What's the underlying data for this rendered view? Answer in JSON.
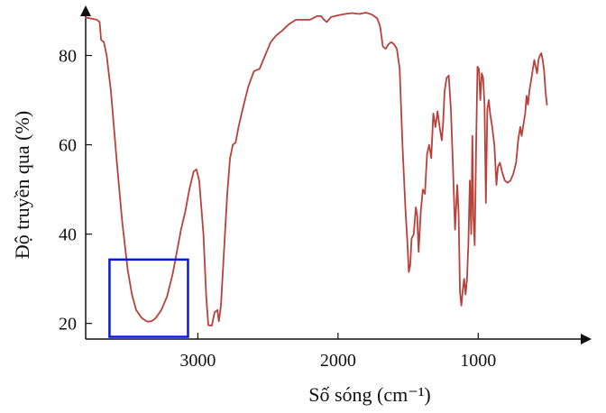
{
  "chart_data": {
    "type": "line",
    "title": "",
    "xlabel": "Số sóng (cm⁻¹)",
    "ylabel": "Độ truyền qua (%)",
    "x_reversed": true,
    "xlim": [
      3800,
      230
    ],
    "ylim": [
      16.5,
      90
    ],
    "x_ticks": [
      {
        "value": 3000,
        "label": "3000"
      },
      {
        "value": 2000,
        "label": "2000"
      },
      {
        "value": 1000,
        "label": "1000"
      }
    ],
    "y_ticks": [
      {
        "value": 20,
        "label": "20"
      },
      {
        "value": 40,
        "label": "40"
      },
      {
        "value": 60,
        "label": "60"
      },
      {
        "value": 80,
        "label": "80"
      }
    ],
    "grid": false,
    "line_color": "#b8413b",
    "highlight_color": "#0a18d8",
    "highlight_region": {
      "x_from": 3630,
      "x_to": 3070,
      "y_from": 17,
      "y_to": 34.3
    },
    "series": [
      {
        "points": [
          [
            3800,
            88.5
          ],
          [
            3720,
            88
          ],
          [
            3700,
            87.5
          ],
          [
            3690,
            83.5
          ],
          [
            3670,
            83
          ],
          [
            3650,
            80
          ],
          [
            3620,
            72
          ],
          [
            3580,
            57
          ],
          [
            3540,
            43
          ],
          [
            3500,
            32
          ],
          [
            3470,
            26.5
          ],
          [
            3440,
            23
          ],
          [
            3400,
            21.2
          ],
          [
            3360,
            20.4
          ],
          [
            3330,
            20.5
          ],
          [
            3300,
            21.2
          ],
          [
            3260,
            23
          ],
          [
            3220,
            26
          ],
          [
            3180,
            31
          ],
          [
            3150,
            36
          ],
          [
            3120,
            41
          ],
          [
            3090,
            45
          ],
          [
            3060,
            50
          ],
          [
            3030,
            54
          ],
          [
            3010,
            54.5
          ],
          [
            2990,
            52
          ],
          [
            2960,
            40
          ],
          [
            2940,
            26
          ],
          [
            2925,
            19.6
          ],
          [
            2900,
            19.5
          ],
          [
            2880,
            22.5
          ],
          [
            2860,
            23
          ],
          [
            2850,
            20.5
          ],
          [
            2835,
            24
          ],
          [
            2810,
            38
          ],
          [
            2790,
            49
          ],
          [
            2770,
            57
          ],
          [
            2750,
            60
          ],
          [
            2730,
            60.5
          ],
          [
            2710,
            64
          ],
          [
            2680,
            68
          ],
          [
            2640,
            73
          ],
          [
            2600,
            76.5
          ],
          [
            2560,
            77
          ],
          [
            2520,
            80
          ],
          [
            2480,
            83
          ],
          [
            2440,
            84.5
          ],
          [
            2400,
            85.5
          ],
          [
            2350,
            87
          ],
          [
            2300,
            88
          ],
          [
            2250,
            88
          ],
          [
            2200,
            88
          ],
          [
            2150,
            88.8
          ],
          [
            2120,
            88.8
          ],
          [
            2100,
            88
          ],
          [
            2080,
            87.5
          ],
          [
            2050,
            88.6
          ],
          [
            2000,
            89
          ],
          [
            1950,
            89.3
          ],
          [
            1900,
            89.5
          ],
          [
            1850,
            89.3
          ],
          [
            1800,
            89.6
          ],
          [
            1760,
            89.2
          ],
          [
            1720,
            88.3
          ],
          [
            1700,
            86.5
          ],
          [
            1680,
            82
          ],
          [
            1660,
            81.5
          ],
          [
            1640,
            82.5
          ],
          [
            1620,
            83
          ],
          [
            1600,
            82.5
          ],
          [
            1580,
            81.5
          ],
          [
            1560,
            77
          ],
          [
            1540,
            60
          ],
          [
            1520,
            46
          ],
          [
            1505,
            38
          ],
          [
            1495,
            31.5
          ],
          [
            1485,
            33
          ],
          [
            1475,
            39
          ],
          [
            1460,
            40
          ],
          [
            1445,
            46
          ],
          [
            1435,
            44
          ],
          [
            1425,
            36
          ],
          [
            1410,
            45
          ],
          [
            1395,
            50
          ],
          [
            1380,
            49
          ],
          [
            1365,
            58
          ],
          [
            1350,
            60
          ],
          [
            1335,
            57
          ],
          [
            1320,
            67
          ],
          [
            1305,
            64
          ],
          [
            1290,
            67.5
          ],
          [
            1275,
            64
          ],
          [
            1260,
            61
          ],
          [
            1250,
            65
          ],
          [
            1240,
            72
          ],
          [
            1225,
            75
          ],
          [
            1210,
            75.5
          ],
          [
            1195,
            68
          ],
          [
            1180,
            55
          ],
          [
            1165,
            41
          ],
          [
            1150,
            51
          ],
          [
            1140,
            45
          ],
          [
            1130,
            27
          ],
          [
            1120,
            24
          ],
          [
            1110,
            27.5
          ],
          [
            1100,
            30
          ],
          [
            1090,
            26.5
          ],
          [
            1080,
            30
          ],
          [
            1070,
            38
          ],
          [
            1060,
            52
          ],
          [
            1050,
            40
          ],
          [
            1042,
            62
          ],
          [
            1035,
            44
          ],
          [
            1025,
            37.5
          ],
          [
            1015,
            60
          ],
          [
            1005,
            77.5
          ],
          [
            995,
            77
          ],
          [
            985,
            70
          ],
          [
            975,
            76
          ],
          [
            965,
            75
          ],
          [
            955,
            69
          ],
          [
            945,
            47
          ],
          [
            935,
            68
          ],
          [
            925,
            70
          ],
          [
            915,
            67
          ],
          [
            900,
            64
          ],
          [
            885,
            60
          ],
          [
            870,
            51
          ],
          [
            860,
            55
          ],
          [
            845,
            56
          ],
          [
            830,
            54
          ],
          [
            810,
            52
          ],
          [
            790,
            51.5
          ],
          [
            770,
            52
          ],
          [
            750,
            53.5
          ],
          [
            730,
            56
          ],
          [
            715,
            61
          ],
          [
            700,
            64
          ],
          [
            690,
            62
          ],
          [
            680,
            64
          ],
          [
            665,
            67
          ],
          [
            655,
            71
          ],
          [
            645,
            69
          ],
          [
            635,
            72
          ],
          [
            620,
            75
          ],
          [
            610,
            77
          ],
          [
            600,
            79
          ],
          [
            590,
            77.5
          ],
          [
            580,
            76
          ],
          [
            570,
            79
          ],
          [
            560,
            80
          ],
          [
            550,
            80.5
          ],
          [
            540,
            79
          ],
          [
            530,
            76.5
          ],
          [
            520,
            72
          ],
          [
            510,
            69
          ]
        ]
      }
    ]
  }
}
